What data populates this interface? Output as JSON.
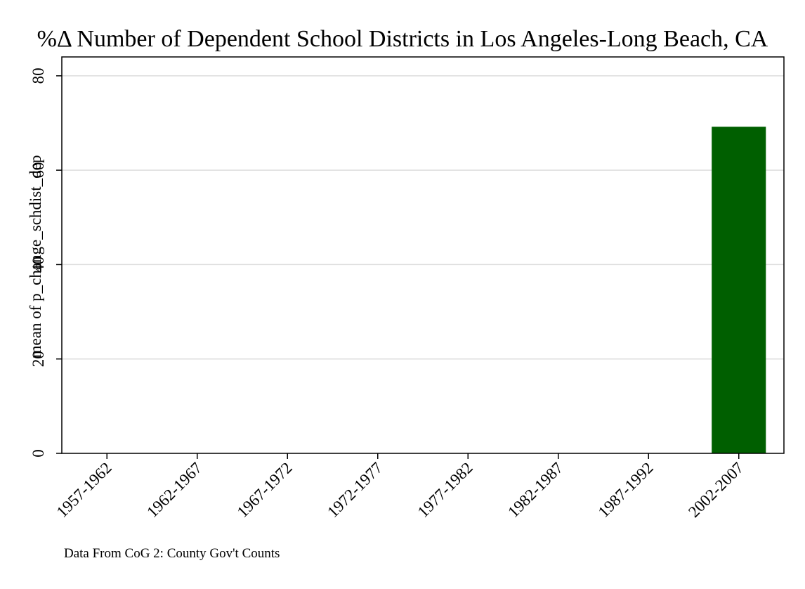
{
  "chart_data": {
    "type": "bar",
    "title": "%Δ Number of Dependent School Districts in Los Angeles-Long Beach, CA",
    "ylabel": "mean of p_change_schdist_dep",
    "xlabel": "",
    "categories": [
      "1957-1962",
      "1962-1967",
      "1967-1972",
      "1972-1977",
      "1977-1982",
      "1982-1987",
      "1987-1992",
      "2002-2007"
    ],
    "values": [
      0,
      0,
      0,
      0,
      0,
      0,
      0,
      69.2
    ],
    "ylim": [
      0,
      84
    ],
    "yticks": [
      0,
      20,
      40,
      60,
      80
    ],
    "grid": true,
    "legend": "none",
    "note": "Data From CoG 2: County Gov't Counts",
    "colors": {
      "bar": "#005f00",
      "grid": "#dddddd",
      "axis": "#000000"
    }
  }
}
